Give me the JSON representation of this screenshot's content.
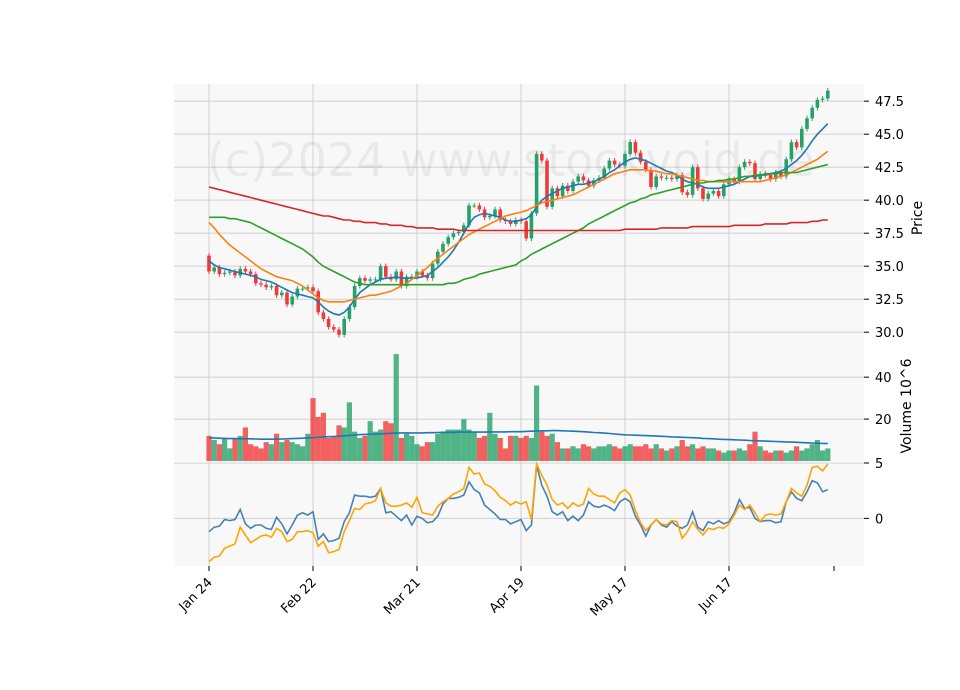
{
  "watermark": "(c)2024 www.stockvoid.de",
  "chart_data": [
    {
      "type": "candlestick",
      "name": "price",
      "ylabel": "Price",
      "ylim": [
        28.5,
        48.8
      ],
      "yticks": [
        30.0,
        32.5,
        35.0,
        37.5,
        40.0,
        42.5,
        45.0,
        47.5
      ],
      "xticks": [
        {
          "label": "Jan 24",
          "index": 0
        },
        {
          "label": "Feb 22",
          "index": 20
        },
        {
          "label": "Mar 21",
          "index": 40
        },
        {
          "label": "Apr 19",
          "index": 60
        },
        {
          "label": "May 17",
          "index": 80
        },
        {
          "label": "Jun 17",
          "index": 100
        }
      ],
      "close": [
        34.6,
        34.9,
        34.4,
        34.5,
        34.6,
        34.3,
        34.8,
        34.6,
        34.4,
        33.7,
        33.6,
        33.4,
        33.5,
        32.8,
        33.0,
        32.1,
        32.7,
        33.3,
        33.3,
        33.4,
        33.1,
        31.5,
        31.0,
        30.4,
        30.2,
        29.8,
        31.0,
        31.9,
        33.5,
        34.1,
        33.9,
        34.0,
        34.0,
        35.0,
        34.2,
        34.0,
        34.6,
        33.5,
        34.2,
        34.2,
        34.6,
        34.3,
        34.1,
        35.2,
        36.1,
        36.7,
        37.2,
        37.5,
        37.6,
        38.1,
        39.6,
        39.6,
        39.3,
        38.7,
        38.8,
        39.3,
        38.5,
        38.4,
        38.2,
        38.5,
        38.4,
        37.1,
        39.0,
        43.5,
        43.0,
        39.5,
        40.9,
        40.3,
        41.1,
        40.7,
        41.4,
        41.8,
        41.5,
        41.1,
        41.5,
        41.7,
        42.4,
        43.0,
        42.7,
        42.6,
        43.5,
        44.4,
        43.6,
        42.9,
        42.3,
        41.0,
        41.8,
        41.7,
        41.7,
        41.6,
        41.9,
        40.6,
        40.4,
        42.5,
        40.9,
        40.1,
        40.5,
        40.7,
        40.3,
        41.2,
        41.6,
        41.4,
        42.5,
        42.9,
        42.8,
        41.6,
        42.0,
        41.9,
        41.6,
        42.1,
        41.8,
        43.1,
        44.4,
        44.0,
        45.4,
        46.2,
        47.0,
        47.6,
        47.7,
        48.3
      ],
      "ma_series": [
        {
          "color": "#1f77b4",
          "values": [
            35.4,
            35.1,
            34.9,
            34.8,
            34.7,
            34.6,
            34.5,
            34.4,
            34.3,
            34.2,
            34.0,
            33.9,
            33.8,
            33.6,
            33.4,
            33.2,
            33.0,
            32.9,
            32.8,
            32.7,
            32.6,
            32.3,
            31.9,
            31.6,
            31.4,
            31.3,
            31.5,
            31.9,
            32.5,
            33.0,
            33.3,
            33.6,
            33.8,
            34.0,
            34.1,
            34.1,
            34.2,
            34.1,
            34.1,
            34.1,
            34.1,
            34.2,
            34.3,
            34.6,
            34.9,
            35.3,
            35.7,
            36.2,
            36.8,
            37.5,
            38.2,
            38.7,
            38.9,
            39.0,
            38.9,
            38.8,
            38.7,
            38.5,
            38.4,
            38.4,
            38.5,
            38.6,
            38.9,
            39.5,
            40.0,
            40.3,
            40.5,
            40.7,
            40.9,
            41.0,
            41.1,
            41.2,
            41.2,
            41.3,
            41.4,
            41.6,
            41.8,
            42.1,
            42.3,
            42.6,
            42.9,
            43.1,
            43.2,
            43.1,
            43.0,
            42.8,
            42.6,
            42.4,
            42.2,
            42.1,
            41.9,
            41.6,
            41.4,
            41.3,
            41.2,
            41.0,
            40.9,
            40.9,
            40.9,
            41.0,
            41.1,
            41.2,
            41.4,
            41.6,
            41.8,
            41.8,
            41.9,
            41.9,
            42.0,
            42.1,
            42.2,
            42.4,
            42.7,
            43.0,
            43.4,
            43.9,
            44.5,
            45.0,
            45.4,
            45.8
          ]
        },
        {
          "color": "#ff7f0e",
          "values": [
            38.3,
            37.9,
            37.4,
            37.0,
            36.6,
            36.3,
            36.0,
            35.7,
            35.4,
            35.1,
            34.8,
            34.6,
            34.4,
            34.2,
            34.1,
            34.0,
            33.9,
            33.7,
            33.5,
            33.2,
            32.9,
            32.6,
            32.4,
            32.3,
            32.3,
            32.3,
            32.3,
            32.4,
            32.5,
            32.6,
            32.7,
            32.8,
            32.8,
            32.9,
            33.0,
            33.1,
            33.3,
            33.5,
            33.7,
            34.0,
            34.3,
            34.6,
            34.9,
            35.3,
            35.6,
            35.9,
            36.2,
            36.5,
            36.8,
            37.1,
            37.4,
            37.6,
            37.8,
            38.0,
            38.2,
            38.4,
            38.6,
            38.8,
            38.9,
            39.0,
            39.1,
            39.2,
            39.4,
            39.6,
            39.8,
            39.9,
            40.0,
            40.1,
            40.2,
            40.3,
            40.4,
            40.6,
            40.8,
            41.0,
            41.2,
            41.4,
            41.6,
            41.8,
            42.0,
            42.1,
            42.2,
            42.3,
            42.3,
            42.3,
            42.3,
            42.2,
            42.2,
            42.1,
            42.0,
            42.0,
            41.9,
            41.8,
            41.7,
            41.6,
            41.5,
            41.5,
            41.4,
            41.4,
            41.4,
            41.4,
            41.4,
            41.4,
            41.4,
            41.4,
            41.4,
            41.4,
            41.4,
            41.5,
            41.6,
            41.7,
            41.8,
            41.9,
            42.1,
            42.3,
            42.5,
            42.7,
            42.9,
            43.1,
            43.4,
            43.7
          ]
        },
        {
          "color": "#2ca02c",
          "values": [
            38.7,
            38.7,
            38.7,
            38.7,
            38.6,
            38.6,
            38.5,
            38.4,
            38.3,
            38.1,
            37.9,
            37.7,
            37.5,
            37.3,
            37.1,
            36.9,
            36.7,
            36.5,
            36.3,
            36.0,
            35.7,
            35.3,
            35.0,
            34.8,
            34.6,
            34.4,
            34.2,
            34.0,
            33.8,
            33.7,
            33.6,
            33.6,
            33.6,
            33.6,
            33.6,
            33.6,
            33.6,
            33.6,
            33.6,
            33.6,
            33.6,
            33.6,
            33.6,
            33.6,
            33.6,
            33.6,
            33.7,
            33.7,
            33.8,
            34.0,
            34.1,
            34.2,
            34.4,
            34.5,
            34.6,
            34.7,
            34.8,
            34.9,
            35.0,
            35.1,
            35.4,
            35.6,
            35.9,
            36.1,
            36.3,
            36.5,
            36.7,
            36.9,
            37.1,
            37.3,
            37.5,
            37.7,
            37.9,
            38.2,
            38.4,
            38.6,
            38.8,
            39.0,
            39.2,
            39.4,
            39.6,
            39.8,
            39.9,
            40.1,
            40.2,
            40.4,
            40.5,
            40.6,
            40.7,
            40.8,
            40.9,
            41.0,
            41.1,
            41.2,
            41.3,
            41.3,
            41.4,
            41.4,
            41.5,
            41.5,
            41.6,
            41.6,
            41.7,
            41.8,
            41.8,
            41.9,
            41.9,
            42.0,
            42.0,
            42.0,
            42.1,
            42.1,
            42.1,
            42.1,
            42.2,
            42.3,
            42.4,
            42.5,
            42.6,
            42.7
          ]
        },
        {
          "color": "#d62728",
          "values": [
            41.0,
            40.9,
            40.8,
            40.7,
            40.6,
            40.5,
            40.4,
            40.3,
            40.2,
            40.1,
            40.0,
            39.9,
            39.8,
            39.7,
            39.6,
            39.5,
            39.4,
            39.3,
            39.2,
            39.1,
            39.0,
            38.9,
            38.8,
            38.8,
            38.7,
            38.6,
            38.5,
            38.5,
            38.4,
            38.4,
            38.3,
            38.3,
            38.3,
            38.2,
            38.2,
            38.1,
            38.1,
            38.1,
            38.0,
            38.0,
            37.9,
            37.9,
            37.9,
            37.9,
            37.8,
            37.8,
            37.8,
            37.8,
            37.7,
            37.7,
            37.7,
            37.7,
            37.7,
            37.7,
            37.7,
            37.7,
            37.7,
            37.7,
            37.7,
            37.7,
            37.7,
            37.7,
            37.7,
            37.7,
            37.7,
            37.7,
            37.7,
            37.7,
            37.7,
            37.7,
            37.7,
            37.7,
            37.7,
            37.7,
            37.7,
            37.7,
            37.7,
            37.7,
            37.7,
            37.7,
            37.8,
            37.8,
            37.8,
            37.8,
            37.8,
            37.8,
            37.8,
            37.9,
            37.9,
            37.9,
            37.9,
            37.9,
            37.9,
            38.0,
            38.0,
            38.0,
            38.0,
            38.0,
            38.0,
            38.0,
            38.0,
            38.1,
            38.1,
            38.1,
            38.1,
            38.1,
            38.1,
            38.2,
            38.2,
            38.2,
            38.2,
            38.2,
            38.3,
            38.3,
            38.3,
            38.3,
            38.4,
            38.4,
            38.5,
            38.5
          ]
        }
      ]
    },
    {
      "type": "bar",
      "name": "volume",
      "ylabel": "Volume  10^6",
      "ylim": [
        0,
        52
      ],
      "yticks": [
        20,
        40
      ],
      "up_color": "#26a269",
      "down_color": "#f03a3a",
      "values": [
        12.0,
        10.0,
        8.0,
        11.0,
        6.0,
        11.0,
        12.0,
        16.0,
        8.0,
        7.0,
        6.0,
        9.0,
        8.0,
        13.0,
        9.0,
        10.0,
        9.0,
        8.0,
        7.0,
        13.0,
        30.0,
        21.0,
        23.0,
        11.0,
        12.0,
        17.0,
        16.0,
        28.0,
        14.0,
        11.0,
        12.0,
        19.0,
        14.0,
        15.0,
        19.0,
        18.0,
        51.0,
        11.0,
        13.0,
        12.0,
        8.0,
        7.0,
        9.0,
        9.0,
        13.0,
        14.0,
        15.0,
        15.0,
        15.0,
        20.0,
        15.0,
        14.0,
        11.0,
        12.0,
        23.0,
        13.0,
        11.0,
        6.0,
        12.0,
        12.0,
        11.0,
        12.0,
        11.0,
        36.0,
        14.0,
        12.0,
        13.0,
        9.0,
        6.0,
        6.0,
        7.0,
        6.0,
        8.0,
        7.0,
        6.0,
        7.0,
        7.0,
        8.0,
        7.0,
        6.0,
        7.0,
        8.0,
        7.0,
        7.0,
        8.0,
        6.0,
        8.0,
        6.0,
        5.0,
        6.0,
        7.0,
        10.0,
        7.0,
        8.0,
        6.0,
        7.0,
        6.0,
        6.0,
        5.0,
        4.0,
        5.0,
        5.0,
        6.0,
        5.0,
        8.0,
        14.0,
        7.0,
        5.0,
        4.0,
        5.0,
        5.0,
        4.0,
        5.0,
        7.0,
        5.0,
        6.0,
        8.0,
        10.0,
        5.0,
        6.0
      ],
      "ma": [
        11.0,
        11.0,
        10.9,
        10.8,
        10.7,
        10.7,
        10.6,
        10.6,
        10.6,
        10.5,
        10.4,
        10.4,
        10.4,
        10.4,
        10.5,
        10.6,
        10.7,
        10.8,
        10.9,
        11.0,
        11.1,
        11.3,
        11.5,
        11.6,
        11.7,
        11.9,
        12.0,
        12.2,
        12.4,
        12.6,
        12.7,
        12.8,
        12.9,
        13.0,
        13.1,
        13.2,
        13.3,
        13.4,
        13.4,
        13.4,
        13.4,
        13.4,
        13.5,
        13.5,
        13.6,
        13.7,
        13.7,
        13.7,
        13.8,
        13.8,
        13.8,
        13.8,
        13.8,
        13.8,
        13.9,
        13.9,
        13.9,
        13.9,
        14.0,
        14.0,
        14.0,
        14.1,
        14.2,
        14.3,
        14.4,
        14.4,
        14.5,
        14.5,
        14.4,
        14.3,
        14.2,
        14.1,
        14.0,
        13.8,
        13.6,
        13.5,
        13.3,
        13.1,
        12.9,
        12.7,
        12.5,
        12.4,
        12.3,
        12.2,
        12.1,
        12.0,
        11.9,
        11.8,
        11.7,
        11.5,
        11.4,
        11.3,
        11.2,
        11.1,
        11.0,
        10.8,
        10.7,
        10.6,
        10.4,
        10.3,
        10.2,
        10.1,
        10.0,
        9.9,
        9.8,
        9.7,
        9.6,
        9.5,
        9.4,
        9.3,
        9.2,
        9.1,
        9.0,
        8.9,
        8.8,
        8.7,
        8.6,
        8.5,
        8.4,
        8.3
      ]
    },
    {
      "type": "line",
      "name": "indicator",
      "ylim": [
        -4.3,
        5.0
      ],
      "yticks": [
        0,
        5
      ],
      "series": [
        {
          "color": "#4682b4",
          "values": [
            -1.2,
            -0.8,
            -0.7,
            -0.1,
            -0.2,
            -0.1,
            0.8,
            -0.5,
            -0.9,
            -0.6,
            -0.6,
            -0.9,
            -1.0,
            0.1,
            -0.5,
            -1.4,
            -0.6,
            0.3,
            0.5,
            0.3,
            0.6,
            -1.9,
            -1.4,
            -2.1,
            -2.0,
            -1.8,
            -0.3,
            0.5,
            2.1,
            2.0,
            2.0,
            1.9,
            2.0,
            2.7,
            0.5,
            0.6,
            0.2,
            -0.2,
            0.3,
            -0.6,
            0.2,
            0.0,
            -0.4,
            -0.3,
            0.2,
            1.3,
            1.8,
            1.8,
            1.9,
            2.1,
            3.3,
            2.6,
            2.3,
            1.2,
            0.8,
            0.4,
            -0.1,
            -0.1,
            -0.5,
            -0.3,
            -0.1,
            -1.1,
            -0.6,
            4.8,
            3.0,
            2.0,
            0.6,
            0.3,
            0.6,
            -0.2,
            0.2,
            -0.2,
            0.3,
            1.5,
            1.1,
            1.0,
            1.2,
            1.0,
            0.7,
            1.5,
            1.8,
            1.5,
            0.2,
            -0.6,
            -1.6,
            -0.6,
            -0.1,
            -0.6,
            -0.8,
            -0.3,
            -0.7,
            -0.9,
            -0.6,
            0.6,
            -0.8,
            -1.1,
            -0.3,
            -0.5,
            -0.2,
            -0.5,
            -0.3,
            0.5,
            1.7,
            0.9,
            1.0,
            0.0,
            -0.3,
            -0.2,
            -0.2,
            -0.4,
            -0.3,
            1.5,
            2.4,
            1.8,
            1.6,
            2.4,
            3.4,
            3.2,
            2.4,
            2.6
          ]
        },
        {
          "color": "#ffa500",
          "values": [
            -3.9,
            -3.5,
            -3.4,
            -2.7,
            -2.5,
            -2.3,
            -0.8,
            -1.5,
            -2.2,
            -1.9,
            -1.6,
            -1.5,
            -1.7,
            -0.9,
            -1.2,
            -2.1,
            -1.9,
            -1.2,
            -1.2,
            -1.1,
            -1.3,
            -2.5,
            -2.1,
            -3.1,
            -3.0,
            -2.8,
            -1.2,
            -0.2,
            0.9,
            0.8,
            1.3,
            1.4,
            1.6,
            2.7,
            1.4,
            1.1,
            1.1,
            1.2,
            1.4,
            1.0,
            1.9,
            0.5,
            0.4,
            0.3,
            1.1,
            1.5,
            1.8,
            2.2,
            2.4,
            2.7,
            4.6,
            4.0,
            4.1,
            3.1,
            2.9,
            2.5,
            1.9,
            1.6,
            1.2,
            1.5,
            1.3,
            1.5,
            -0.1,
            4.9,
            3.9,
            3.0,
            1.7,
            1.2,
            1.4,
            0.9,
            1.4,
            1.1,
            1.3,
            2.7,
            2.2,
            2.0,
            2.0,
            1.7,
            1.4,
            2.3,
            2.6,
            2.1,
            0.7,
            -0.4,
            -1.1,
            -0.6,
            -0.1,
            -0.5,
            -0.6,
            -0.2,
            -0.3,
            -1.8,
            -1.2,
            -0.3,
            -1.0,
            -1.5,
            -0.9,
            -1.0,
            -0.8,
            -0.9,
            -0.5,
            0.3,
            1.2,
            0.8,
            1.2,
            0.5,
            -0.3,
            0.3,
            0.4,
            0.3,
            0.4,
            1.5,
            2.7,
            2.3,
            2.0,
            3.0,
            4.6,
            4.7,
            4.3,
            4.9
          ]
        }
      ]
    }
  ]
}
